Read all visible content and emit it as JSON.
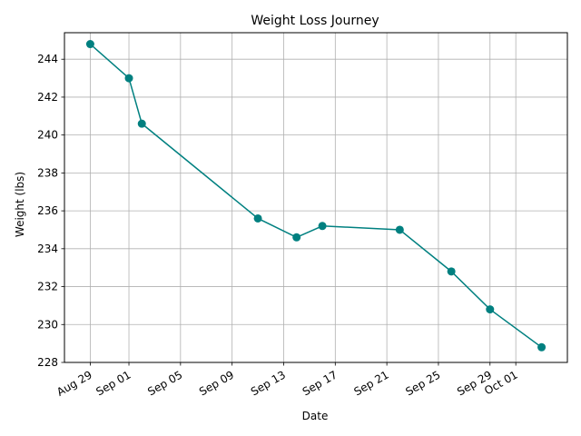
{
  "chart_data": {
    "type": "line",
    "title": "Weight Loss Journey",
    "xlabel": "Date",
    "ylabel": "Weight (lbs)",
    "x_ticks": [
      {
        "date": "2023-08-29",
        "label": "Aug 29"
      },
      {
        "date": "2023-09-01",
        "label": "Sep 01"
      },
      {
        "date": "2023-09-05",
        "label": "Sep 05"
      },
      {
        "date": "2023-09-09",
        "label": "Sep 09"
      },
      {
        "date": "2023-09-13",
        "label": "Sep 13"
      },
      {
        "date": "2023-09-17",
        "label": "Sep 17"
      },
      {
        "date": "2023-09-21",
        "label": "Sep 21"
      },
      {
        "date": "2023-09-25",
        "label": "Sep 25"
      },
      {
        "date": "2023-09-29",
        "label": "Sep 29"
      },
      {
        "date": "2023-10-01",
        "label": "Oct 01"
      }
    ],
    "y_ticks": [
      228,
      230,
      232,
      234,
      236,
      238,
      240,
      242,
      244
    ],
    "xlim": [
      "2023-08-27",
      "2023-10-05"
    ],
    "ylim": [
      228,
      245.4
    ],
    "grid": true,
    "series": [
      {
        "color": "#008080",
        "points": [
          {
            "x": "2023-08-29",
            "y": 244.8
          },
          {
            "x": "2023-09-01",
            "y": 243.0
          },
          {
            "x": "2023-09-02",
            "y": 240.6
          },
          {
            "x": "2023-09-11",
            "y": 235.6
          },
          {
            "x": "2023-09-14",
            "y": 234.6
          },
          {
            "x": "2023-09-16",
            "y": 235.2
          },
          {
            "x": "2023-09-22",
            "y": 235.0
          },
          {
            "x": "2023-09-26",
            "y": 232.8
          },
          {
            "x": "2023-09-29",
            "y": 230.8
          },
          {
            "x": "2023-10-03",
            "y": 228.8
          }
        ]
      }
    ]
  }
}
